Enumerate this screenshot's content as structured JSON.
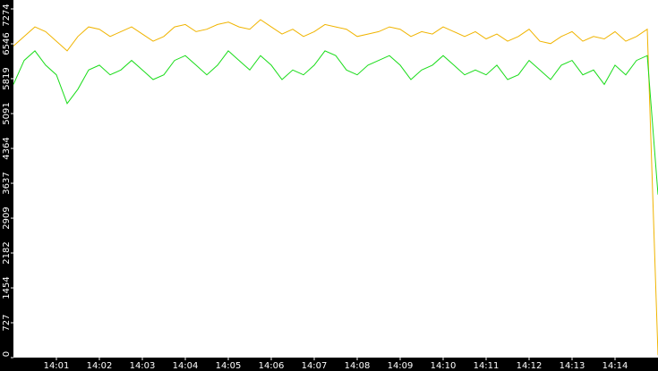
{
  "chart_data": {
    "type": "line",
    "categories": [
      null,
      null,
      null,
      null,
      "14:01",
      null,
      null,
      null,
      "14:02",
      null,
      null,
      null,
      "14:03",
      null,
      null,
      null,
      "14:04",
      null,
      null,
      null,
      "14:05",
      null,
      null,
      null,
      "14:06",
      null,
      null,
      null,
      "14:07",
      null,
      null,
      null,
      "14:08",
      null,
      null,
      null,
      "14:09",
      null,
      null,
      null,
      "14:10",
      null,
      null,
      null,
      "14:11",
      null,
      null,
      null,
      "14:12",
      null,
      null,
      null,
      "14:13",
      null,
      null,
      null,
      "14:14",
      null,
      null,
      null,
      null
    ],
    "series": [
      {
        "color": "#f0b400",
        "values": [
          6500,
          6700,
          6900,
          6800,
          6600,
          6400,
          6700,
          6900,
          6850,
          6700,
          6800,
          6900,
          6750,
          6600,
          6700,
          6900,
          6950,
          6800,
          6850,
          6950,
          7000,
          6900,
          6850,
          7050,
          6900,
          6750,
          6850,
          6700,
          6800,
          6950,
          6900,
          6850,
          6700,
          6750,
          6800,
          6900,
          6850,
          6700,
          6800,
          6750,
          6900,
          6800,
          6700,
          6800,
          6650,
          6750,
          6600,
          6700,
          6850,
          6600,
          6550,
          6700,
          6800,
          6600,
          6700,
          6650,
          6800,
          6600,
          6700,
          6850,
          50
        ]
      },
      {
        "color": "#1adc1a",
        "values": [
          5700,
          6200,
          6400,
          6100,
          5900,
          5300,
          5600,
          6000,
          6100,
          5900,
          6000,
          6200,
          6000,
          5800,
          5900,
          6200,
          6300,
          6100,
          5900,
          6100,
          6400,
          6200,
          6000,
          6300,
          6100,
          5800,
          6000,
          5900,
          6100,
          6400,
          6300,
          6000,
          5900,
          6100,
          6200,
          6300,
          6100,
          5800,
          6000,
          6100,
          6300,
          6100,
          5900,
          6000,
          5900,
          6100,
          5800,
          5900,
          6200,
          6000,
          5800,
          6100,
          6200,
          5900,
          6000,
          5700,
          6100,
          5900,
          6200,
          6300,
          3400
        ]
      }
    ],
    "ylim": [
      0,
      7274
    ],
    "yticks": [
      0,
      727,
      1454,
      2182,
      2909,
      3637,
      4364,
      5091,
      5819,
      6546,
      7274
    ]
  }
}
